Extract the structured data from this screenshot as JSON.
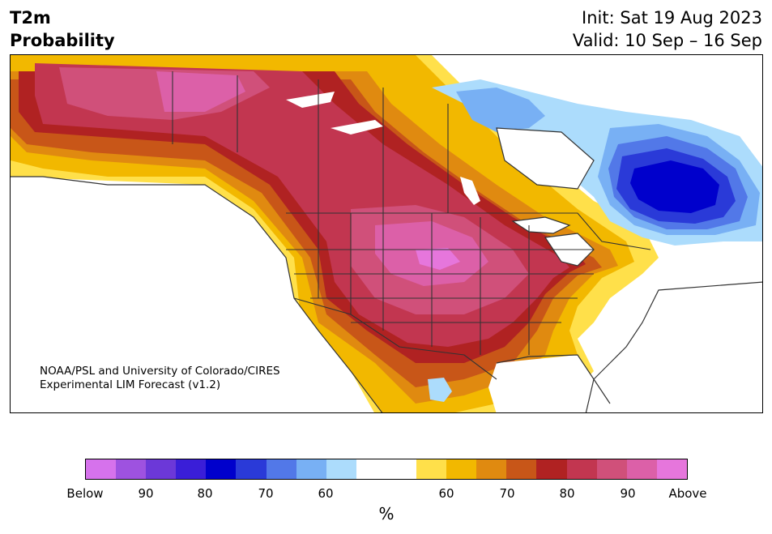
{
  "header": {
    "title_line1": "T2m",
    "title_line2": "Probability",
    "init": "Init: Sat 19 Aug 2023",
    "valid": "Valid: 10 Sep – 16 Sep"
  },
  "credit": {
    "line1": "NOAA/PSL and University of Colorado/CIRES",
    "line2": "Experimental LIM Forecast (v1.2)"
  },
  "colorbar": {
    "colors": [
      "#d672ec",
      "#9e52e0",
      "#6c38d8",
      "#3a1ed8",
      "#0000cc",
      "#2a3ad8",
      "#5278e8",
      "#78b0f4",
      "#acdcfc",
      "#ffffff",
      "#ffffff",
      "#ffe04a",
      "#f2b800",
      "#e08a10",
      "#c85618",
      "#b02222",
      "#c23650",
      "#d0507a",
      "#dc60a8",
      "#e676dc"
    ],
    "labels": [
      "Below",
      "90",
      "80",
      "70",
      "60",
      "60",
      "70",
      "80",
      "90",
      "Above"
    ],
    "unit": "%"
  },
  "map_colors": {
    "land_neutral": "#ffffff",
    "above_55": "#ffe04a",
    "above_60": "#f2b800",
    "above_65": "#e08a10",
    "above_70": "#c85618",
    "above_75": "#b02222",
    "above_80": "#c23650",
    "above_85": "#d0507a",
    "above_90": "#dc60a8",
    "below_55": "#acdcfc",
    "below_60": "#78b0f4",
    "below_65": "#5278e8",
    "below_70": "#2a3ad8",
    "below_75": "#0000cc",
    "borders": "#333333"
  }
}
